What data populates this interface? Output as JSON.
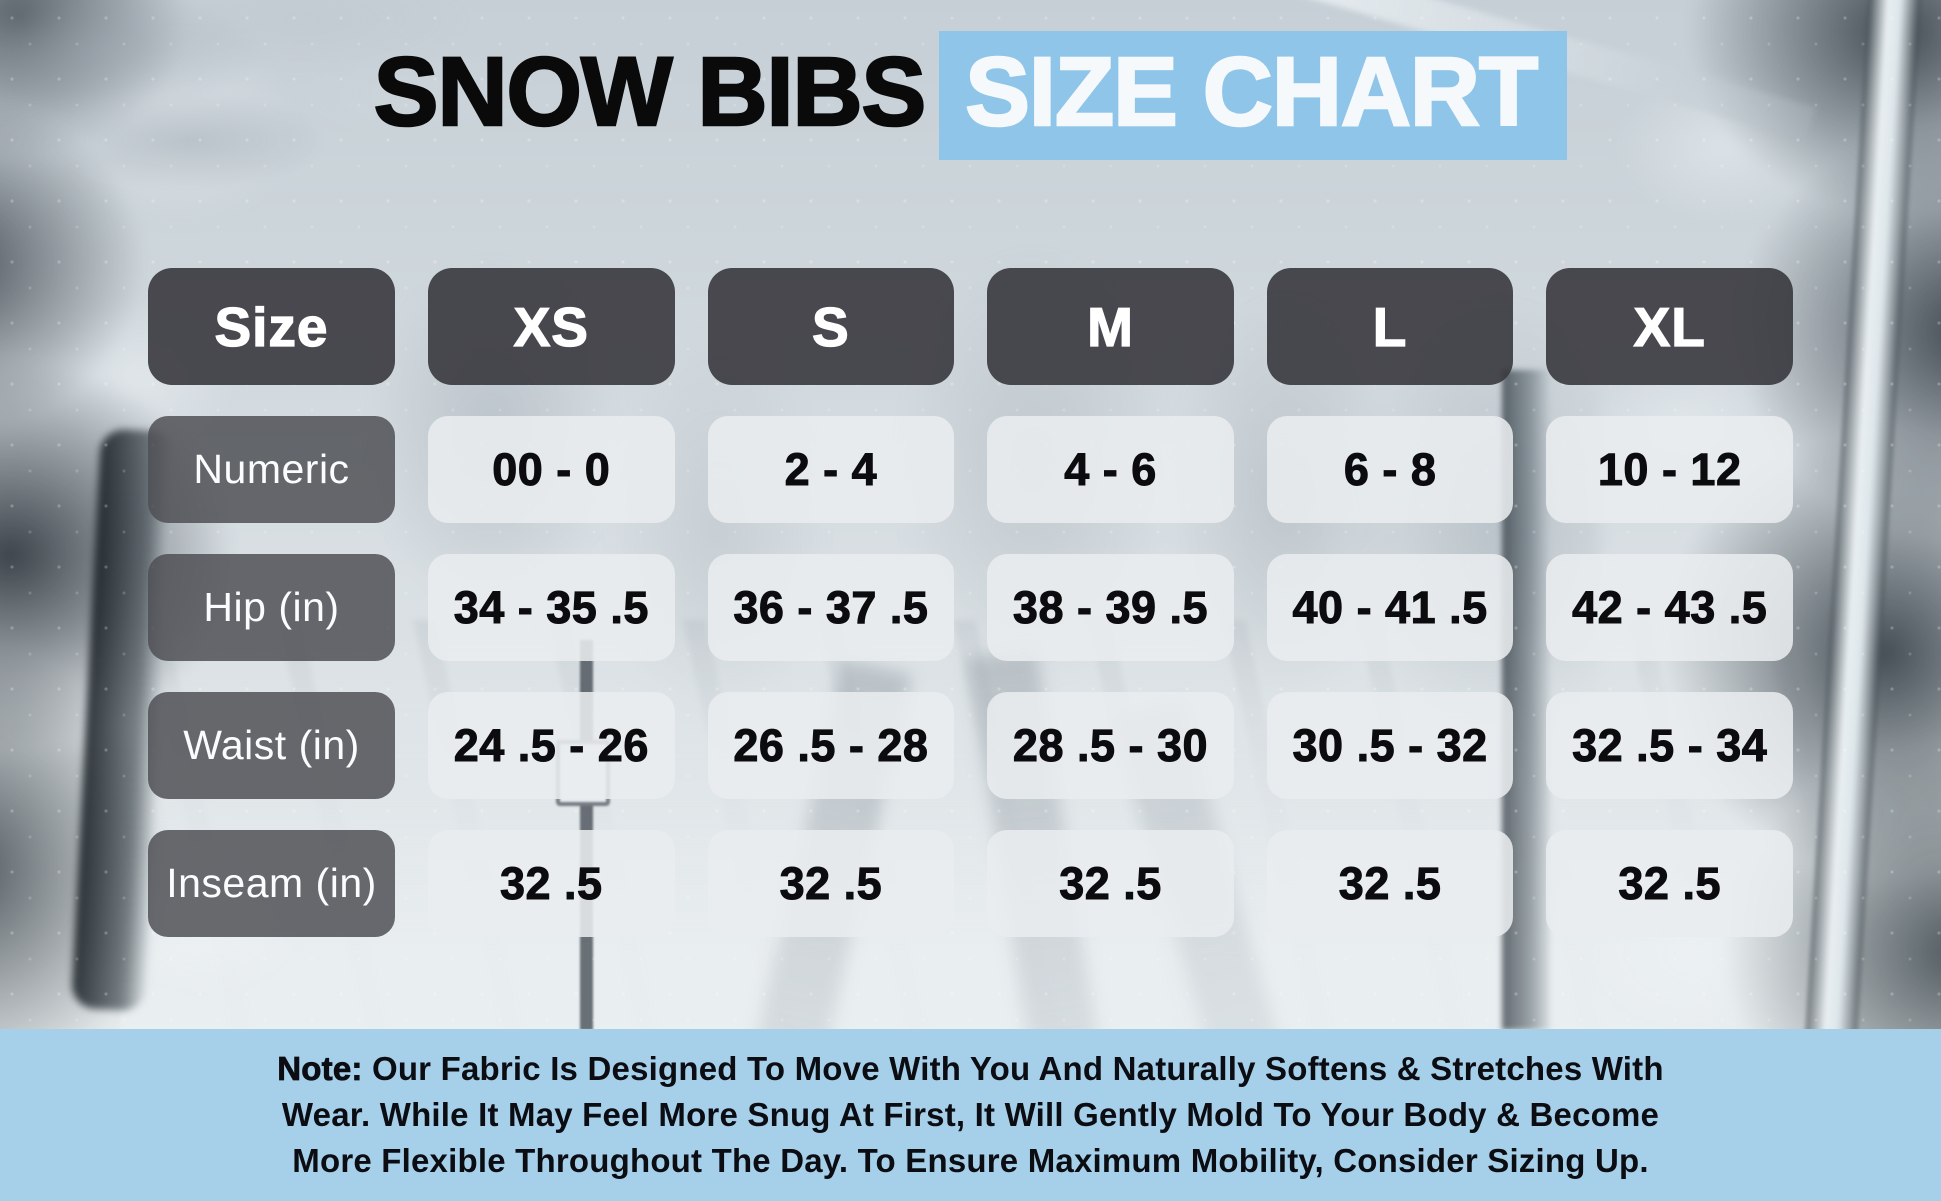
{
  "title": {
    "part1": "SNOW BIBS",
    "part2": "SIZE CHART"
  },
  "chart_data": {
    "type": "table",
    "title": "Snow Bibs Size Chart",
    "columns": [
      "Size",
      "XS",
      "S",
      "M",
      "L",
      "XL"
    ],
    "rows": [
      {
        "label": "Numeric",
        "values": [
          "00 - 0",
          "2 - 4",
          "4 - 6",
          "6 - 8",
          "10 - 12"
        ]
      },
      {
        "label": "Hip (in)",
        "values": [
          "34 - 35 .5",
          "36 - 37 .5",
          "38 - 39 .5",
          "40 - 41 .5",
          "42 - 43 .5"
        ]
      },
      {
        "label": "Waist (in)",
        "values": [
          "24 .5 - 26",
          "26 .5 - 28",
          "28 .5 - 30",
          "30 .5 - 32",
          "32 .5 - 34"
        ]
      },
      {
        "label": "Inseam (in)",
        "values": [
          "32 .5",
          "32 .5",
          "32 .5",
          "32 .5",
          "32 .5"
        ]
      }
    ]
  },
  "note": {
    "label": "Note:",
    "lines": [
      "Our Fabric Is Designed To Move With You And Naturally Softens & Stretches With",
      "Wear. While It May Feel More Snug At First, It Will Gently Mold To Your Body & Become",
      "More Flexible Throughout The Day. To Ensure Maximum Mobility, Consider Sizing Up."
    ]
  },
  "colors": {
    "title_text": "#0A0A0A",
    "title_highlight": "#8FC5E8",
    "header_box": "#38393E",
    "label_box": "#4D4F53",
    "value_box": "#E9EDEF",
    "note_band": "#A6D0EA",
    "note_text": "#0C0D12"
  }
}
